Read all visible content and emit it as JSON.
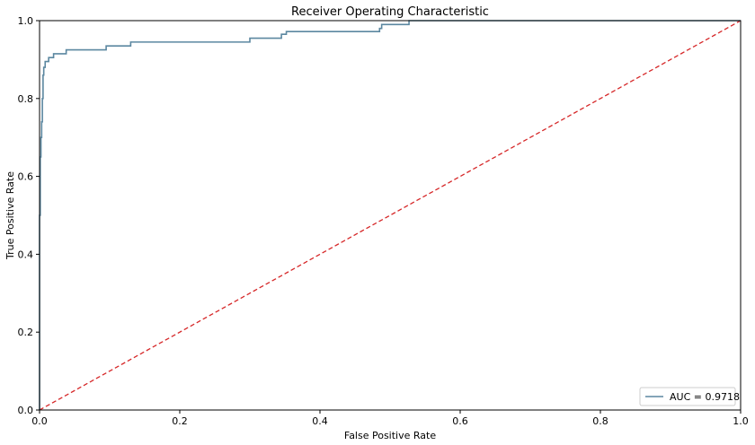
{
  "chart_data": {
    "type": "line",
    "title": "Receiver Operating Characteristic",
    "xlabel": "False Positive Rate",
    "ylabel": "True Positive Rate",
    "xlim": [
      0,
      1
    ],
    "ylim": [
      0,
      1
    ],
    "grid": false,
    "legend_position": "bottom-right",
    "x_ticks": [
      "0.0",
      "0.2",
      "0.4",
      "0.6",
      "0.8",
      "1.0"
    ],
    "y_ticks": [
      "0.0",
      "0.2",
      "0.4",
      "0.6",
      "0.8",
      "1.0"
    ],
    "series": [
      {
        "name": "AUC = 0.9718",
        "color": "#5b87a0",
        "style": "solid",
        "x": [
          0.0,
          0.0,
          0.001,
          0.001,
          0.002,
          0.002,
          0.003,
          0.003,
          0.004,
          0.004,
          0.005,
          0.005,
          0.006,
          0.006,
          0.008,
          0.008,
          0.01,
          0.01,
          0.013,
          0.013,
          0.016,
          0.016,
          0.02,
          0.02,
          0.038,
          0.038,
          0.095,
          0.095,
          0.13,
          0.13,
          0.3,
          0.3,
          0.345,
          0.345,
          0.352,
          0.352,
          0.485,
          0.485,
          0.488,
          0.488,
          0.527,
          0.527,
          1.0
        ],
        "y": [
          0.0,
          0.5,
          0.5,
          0.65,
          0.65,
          0.7,
          0.7,
          0.74,
          0.74,
          0.8,
          0.8,
          0.86,
          0.86,
          0.88,
          0.88,
          0.895,
          0.895,
          0.895,
          0.895,
          0.905,
          0.905,
          0.905,
          0.905,
          0.915,
          0.915,
          0.925,
          0.925,
          0.935,
          0.935,
          0.945,
          0.945,
          0.955,
          0.955,
          0.965,
          0.965,
          0.972,
          0.972,
          0.98,
          0.98,
          0.99,
          0.99,
          1.0,
          1.0
        ]
      },
      {
        "name": "",
        "color": "#d62728",
        "style": "dashed",
        "x": [
          0,
          1
        ],
        "y": [
          0,
          1
        ]
      }
    ]
  }
}
